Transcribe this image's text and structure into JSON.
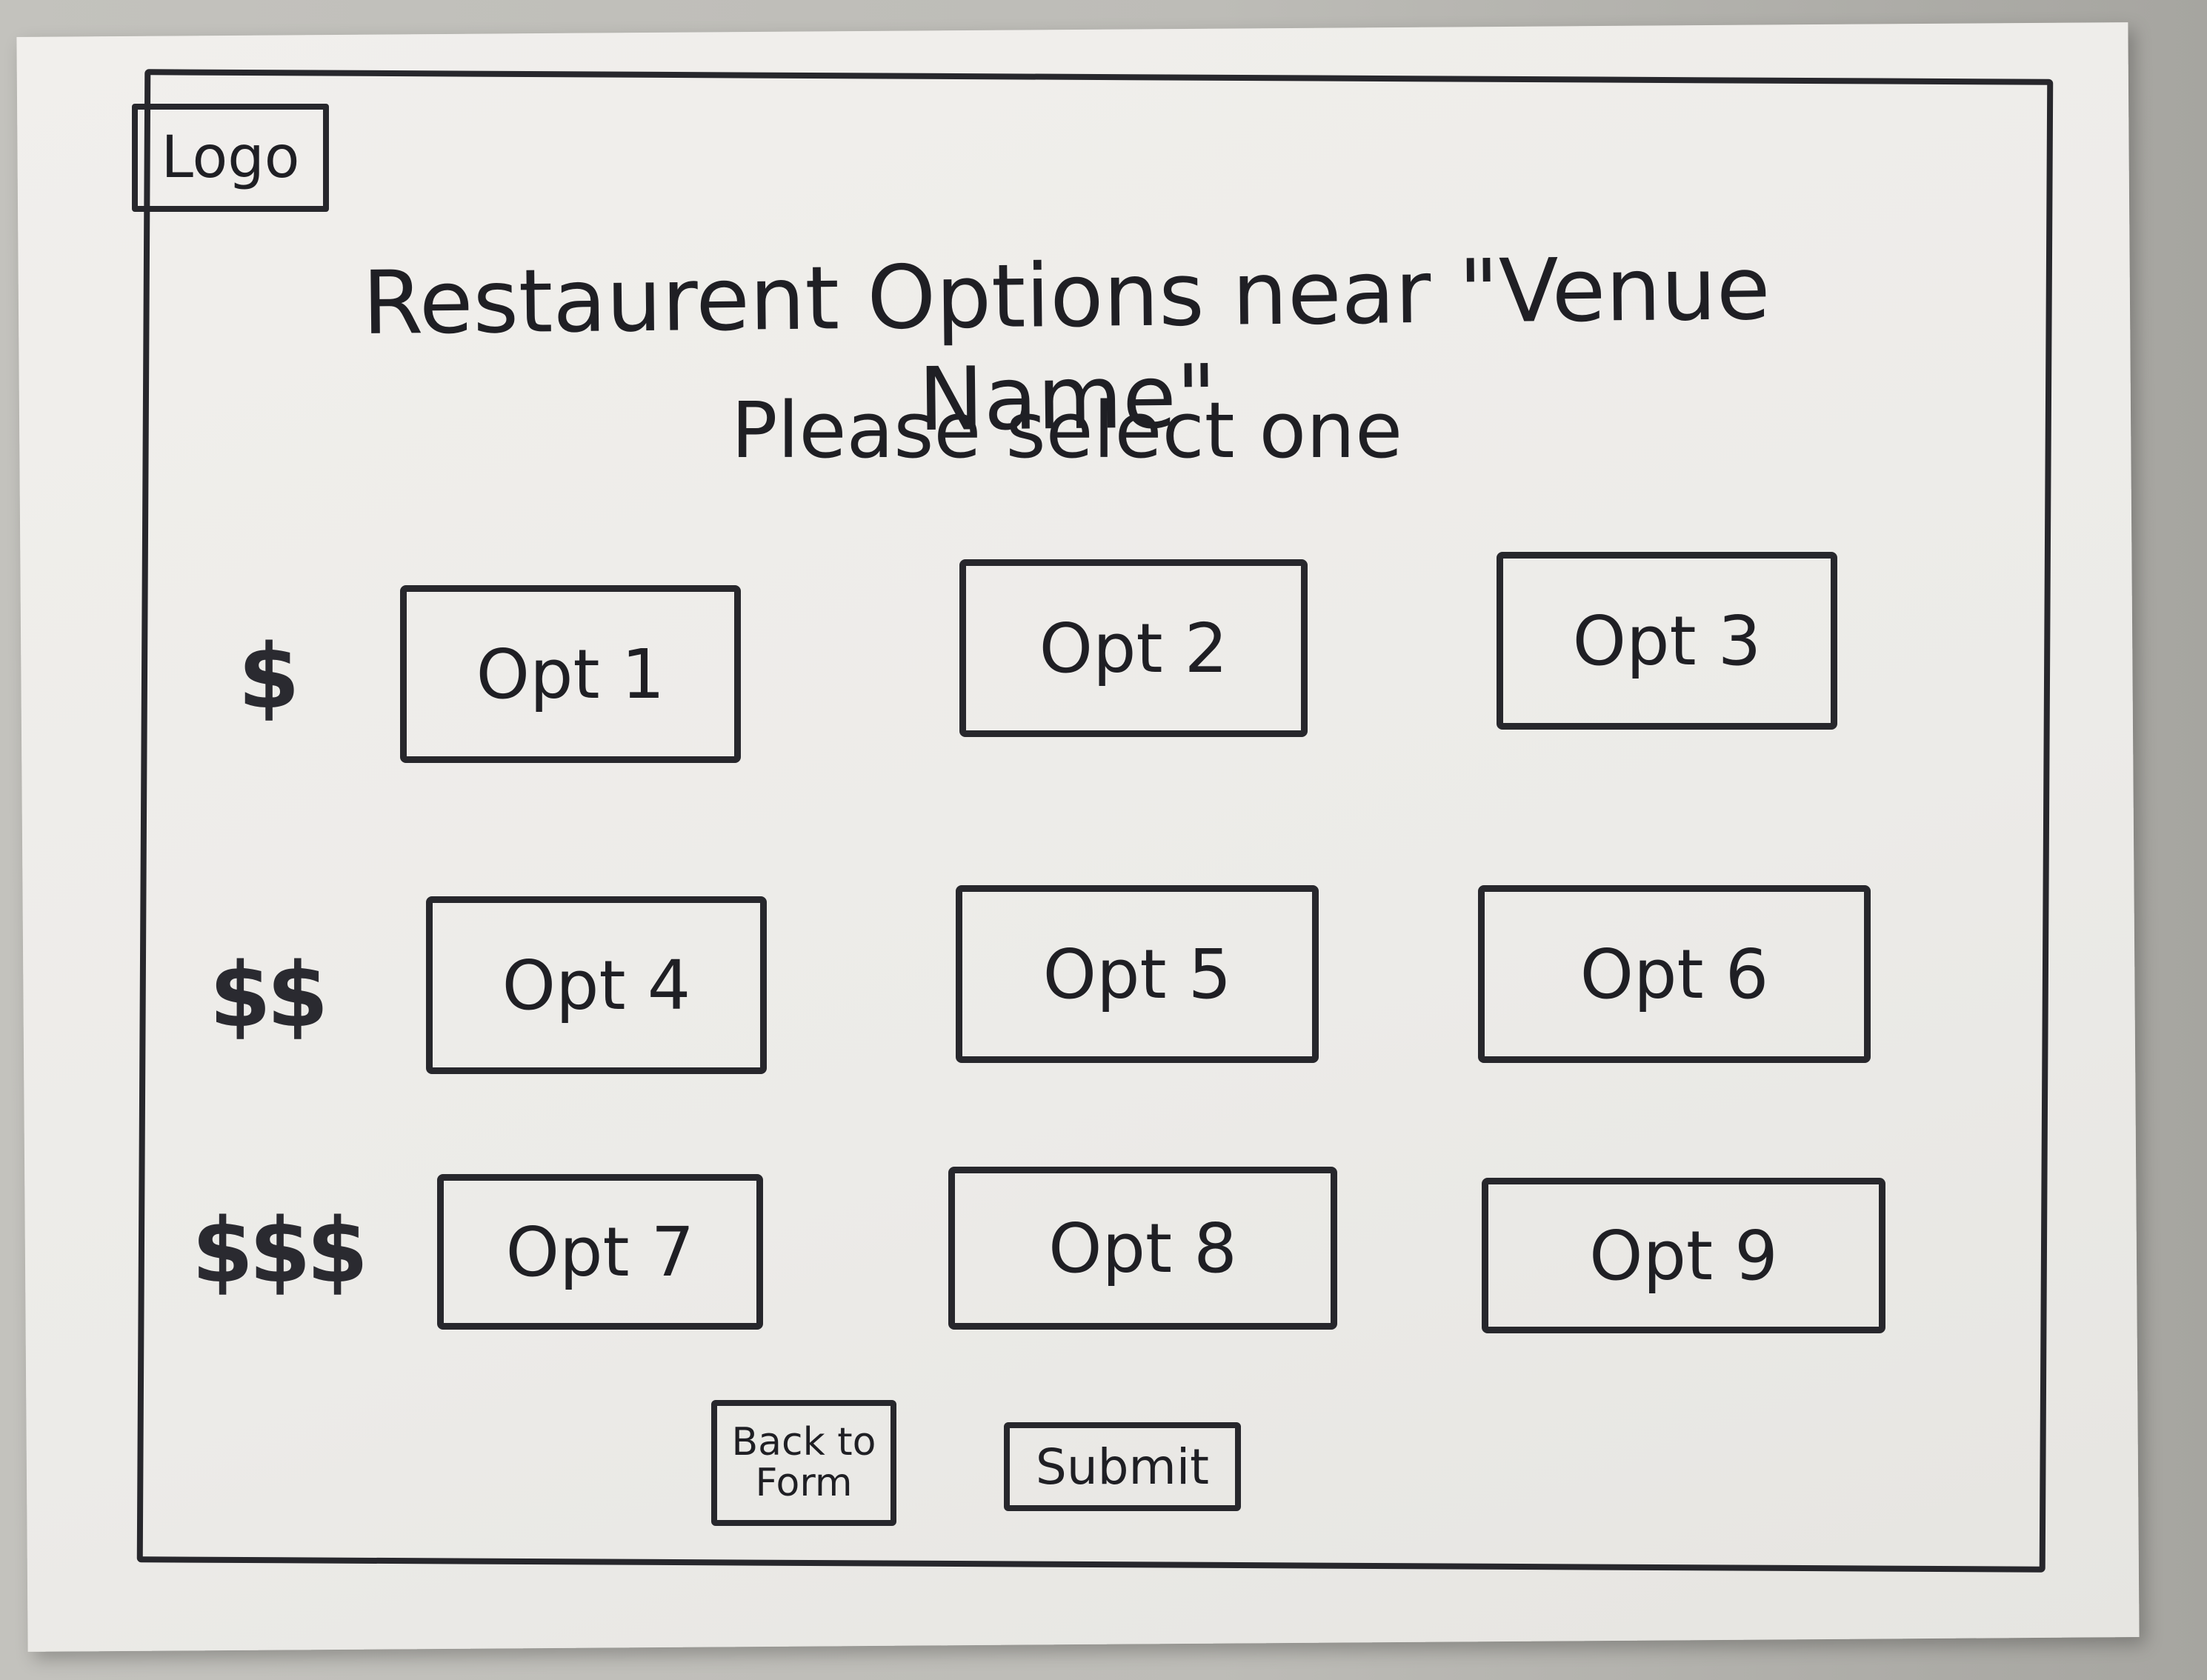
{
  "header": {
    "logo_label": "Logo",
    "title": "Restaurent Options near \"Venue Name\"",
    "subtitle": "Please select one"
  },
  "price_tiers": [
    {
      "label": "$",
      "options": [
        "Opt 1",
        "Opt 2",
        "Opt 3"
      ]
    },
    {
      "label": "$$",
      "options": [
        "Opt 4",
        "Opt 5",
        "Opt 6"
      ]
    },
    {
      "label": "$$$",
      "options": [
        "Opt 7",
        "Opt 8",
        "Opt 9"
      ]
    }
  ],
  "actions": {
    "back_label": "Back to Form",
    "submit_label": "Submit"
  }
}
